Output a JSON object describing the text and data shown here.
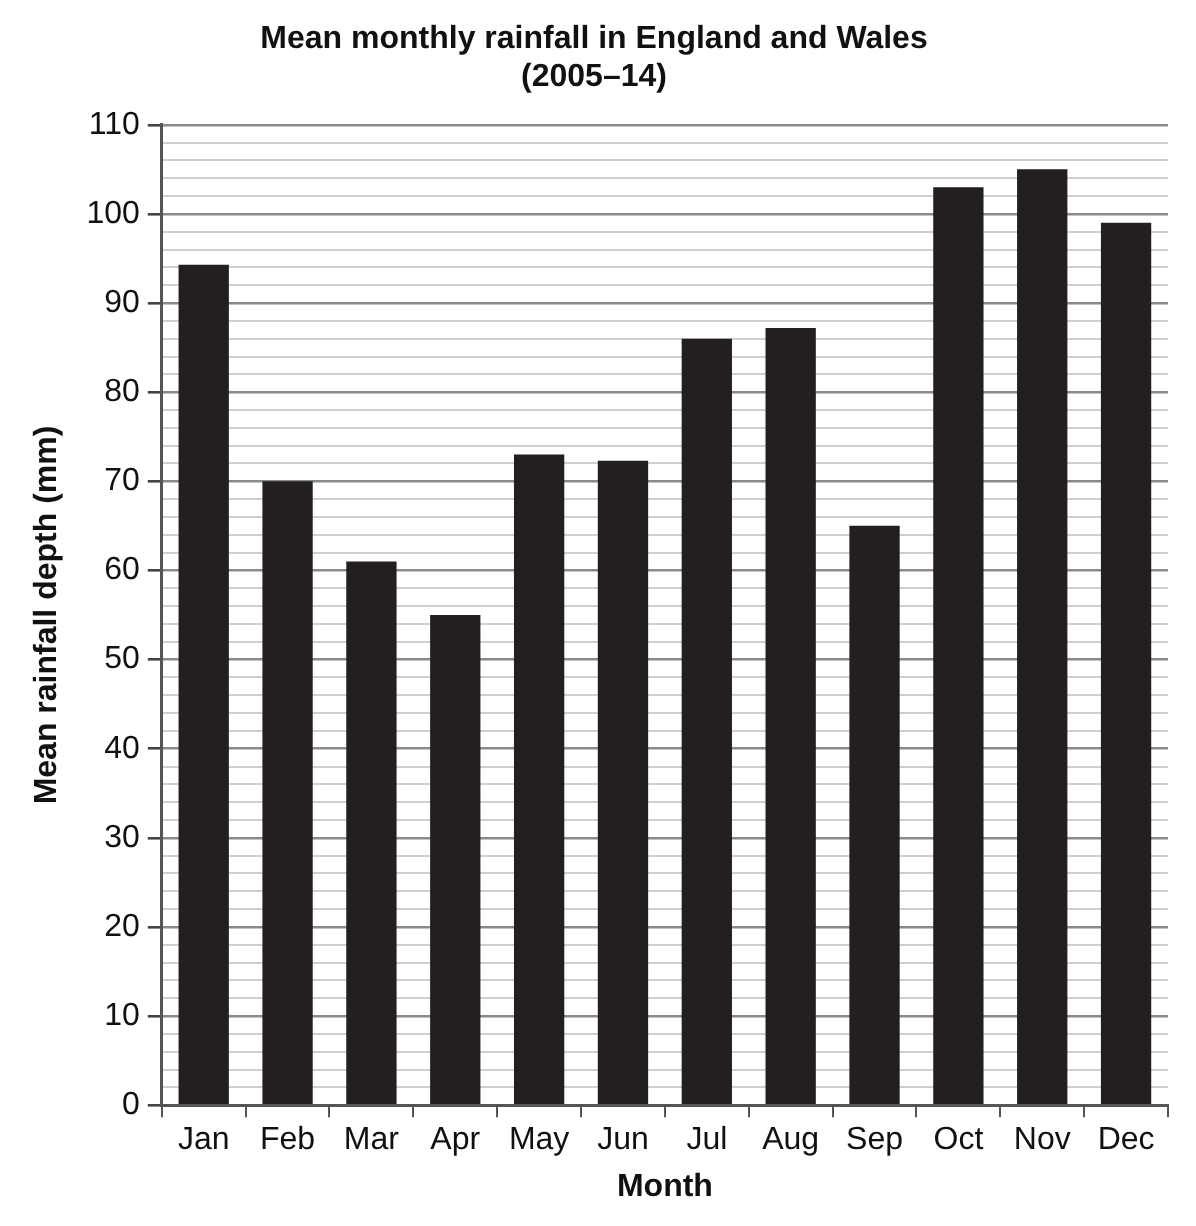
{
  "chart_data": {
    "type": "bar",
    "title": "Mean monthly rainfall in England and Wales\n(2005–14)",
    "xlabel": "Month",
    "ylabel": "Mean rainfall depth (mm)",
    "categories": [
      "Jan",
      "Feb",
      "Mar",
      "Apr",
      "May",
      "Jun",
      "Jul",
      "Aug",
      "Sep",
      "Oct",
      "Nov",
      "Dec"
    ],
    "values": [
      94.3,
      70,
      61,
      55,
      73,
      72.3,
      86,
      87.2,
      65,
      103,
      105,
      99
    ],
    "color": "#231f20",
    "ylim": [
      0,
      110
    ],
    "yticks": [
      0,
      {
        "value": 2,
        "label": null
      },
      {
        "value": 4,
        "label": null
      },
      {
        "value": 6,
        "label": null
      },
      {
        "value": 8,
        "label": null
      },
      10,
      {
        "value": 12,
        "label": null
      },
      {
        "value": 14,
        "label": null
      },
      {
        "value": 16,
        "label": null
      },
      {
        "value": 18,
        "label": null
      },
      20,
      {
        "value": 22,
        "label": null
      },
      {
        "value": 24,
        "label": null
      },
      {
        "value": 26,
        "label": null
      },
      {
        "value": 28,
        "label": null
      },
      30,
      {
        "value": 32,
        "label": null
      },
      {
        "value": 34,
        "label": null
      },
      {
        "value": 36,
        "label": null
      },
      {
        "value": 38,
        "label": null
      },
      40,
      {
        "value": 42,
        "label": null
      },
      {
        "value": 44,
        "label": null
      },
      {
        "value": 46,
        "label": null
      },
      {
        "value": 48,
        "label": null
      },
      50,
      {
        "value": 52,
        "label": null
      },
      {
        "value": 54,
        "label": null
      },
      {
        "value": 56,
        "label": null
      },
      {
        "value": 58,
        "label": null
      },
      60,
      {
        "value": 62,
        "label": null
      },
      {
        "value": 64,
        "label": null
      },
      {
        "value": 66,
        "label": null
      },
      {
        "value": 68,
        "label": null
      },
      70,
      {
        "value": 72,
        "label": null
      },
      {
        "value": 74,
        "label": null
      },
      {
        "value": 76,
        "label": null
      },
      {
        "value": 78,
        "label": null
      },
      80,
      {
        "value": 82,
        "label": null
      },
      {
        "value": 84,
        "label": null
      },
      {
        "value": 86,
        "label": null
      },
      {
        "value": 88,
        "label": null
      },
      90,
      {
        "value": 92,
        "label": null
      },
      {
        "value": 94,
        "label": null
      },
      {
        "value": 96,
        "label": null
      },
      {
        "value": 98,
        "label": null
      },
      100,
      {
        "value": 102,
        "label": null
      },
      {
        "value": 104,
        "label": null
      },
      {
        "value": 106,
        "label": null
      },
      {
        "value": 108,
        "label": null
      },
      110
    ],
    "grid": "y"
  }
}
